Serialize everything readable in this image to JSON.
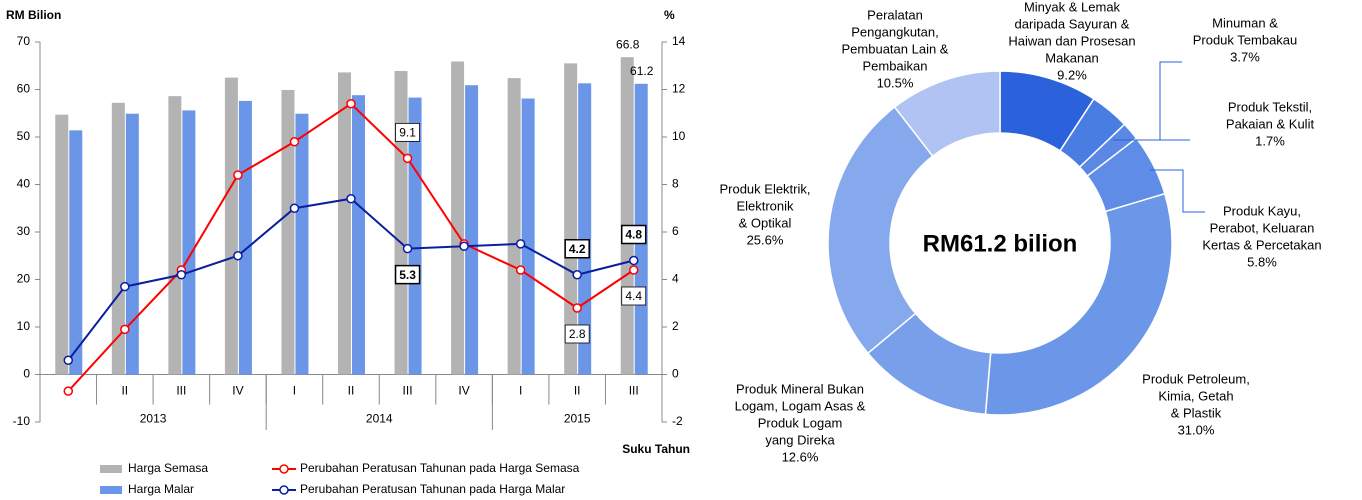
{
  "chart_data": [
    {
      "type": "combo",
      "ylabel": "RM Bilion",
      "y2label": "%",
      "xlabel": "Suku Tahun",
      "categories": [
        null,
        "II",
        "III",
        "IV",
        "I",
        "II",
        "III",
        "IV",
        "I",
        "II",
        "III"
      ],
      "groups": [
        {
          "label": "2013",
          "span": 4
        },
        {
          "label": "2014",
          "span": 4
        },
        {
          "label": "2015",
          "span": 3
        }
      ],
      "ylim": [
        -10,
        70
      ],
      "yticks": [
        -10,
        0,
        10,
        20,
        30,
        40,
        50,
        60,
        70
      ],
      "y2lim": [
        -2,
        14
      ],
      "y2ticks": [
        -2,
        0,
        2,
        4,
        6,
        8,
        10,
        12,
        14
      ],
      "series": [
        {
          "name": "Harga Semasa",
          "kind": "bar",
          "color": "#b3b3b3",
          "values": [
            54.7,
            57.2,
            58.6,
            62.5,
            59.9,
            63.6,
            63.9,
            65.9,
            62.4,
            65.5,
            66.8
          ],
          "labels_at": [
            10
          ]
        },
        {
          "name": "Harga Malar",
          "kind": "bar",
          "color": "#6b96e8",
          "values": [
            51.4,
            54.9,
            55.6,
            57.6,
            54.9,
            58.8,
            58.3,
            60.9,
            58.1,
            61.3,
            61.2
          ],
          "labels_at": [
            10
          ]
        },
        {
          "name": "Perubahan Peratusan Tahunan pada Harga Semasa",
          "kind": "line",
          "axis": "y2",
          "color": "#ff0000",
          "values": [
            -0.7,
            1.9,
            4.4,
            8.4,
            9.8,
            11.4,
            9.1,
            5.5,
            4.4,
            2.8,
            4.4
          ],
          "labels_at": [
            6,
            9,
            10
          ]
        },
        {
          "name": "Perubahan Peratusan Tahunan pada Harga Malar",
          "kind": "line",
          "axis": "y2",
          "color": "#0a1fa0",
          "values": [
            0.6,
            3.7,
            4.2,
            5.0,
            7.0,
            7.4,
            5.3,
            5.4,
            5.5,
            4.2,
            4.8
          ],
          "labels_at": [
            6,
            9,
            10
          ]
        }
      ]
    },
    {
      "type": "donut",
      "center_label": "RM61.2 bilion",
      "segments": [
        {
          "name": [
            "Minyak & Lemak",
            "daripada Sayuran &",
            "Haiwan dan Prosesan",
            "Makanan"
          ],
          "value": 9.2,
          "value_label": "9.2%",
          "color": "#2b62dc"
        },
        {
          "name": [
            "Minuman &",
            "Produk Tembakau"
          ],
          "value": 3.7,
          "value_label": "3.7%",
          "color": "#4a7de2"
        },
        {
          "name": [
            "Produk Tekstil,",
            "Pakaian & Kulit"
          ],
          "value": 1.7,
          "value_label": "1.7%",
          "color": "#5a88e4"
        },
        {
          "name": [
            "Produk Kayu,",
            "Perabot, Keluaran",
            "Kertas & Percetakan"
          ],
          "value": 5.8,
          "value_label": "5.8%",
          "color": "#5f8ce6"
        },
        {
          "name": [
            "Produk Petroleum,",
            "Kimia, Getah",
            "& Plastik"
          ],
          "value": 31.0,
          "value_label": "31.0%",
          "color": "#6c96e8"
        },
        {
          "name": [
            "Produk Mineral Bukan",
            "Logam, Logam Asas &",
            "Produk Logam",
            "yang Direka"
          ],
          "value": 12.6,
          "value_label": "12.6%",
          "color": "#789fea"
        },
        {
          "name": [
            "Produk Elektrik,",
            "Elektronik",
            "& Optikal"
          ],
          "value": 25.6,
          "value_label": "25.6%",
          "color": "#86a8ec"
        },
        {
          "name": [
            "Peralatan",
            "Pengangkutan,",
            "Pembuatan Lain &",
            "Pembaikan"
          ],
          "value": 10.5,
          "value_label": "10.5%",
          "color": "#b0c3f2"
        }
      ]
    }
  ]
}
